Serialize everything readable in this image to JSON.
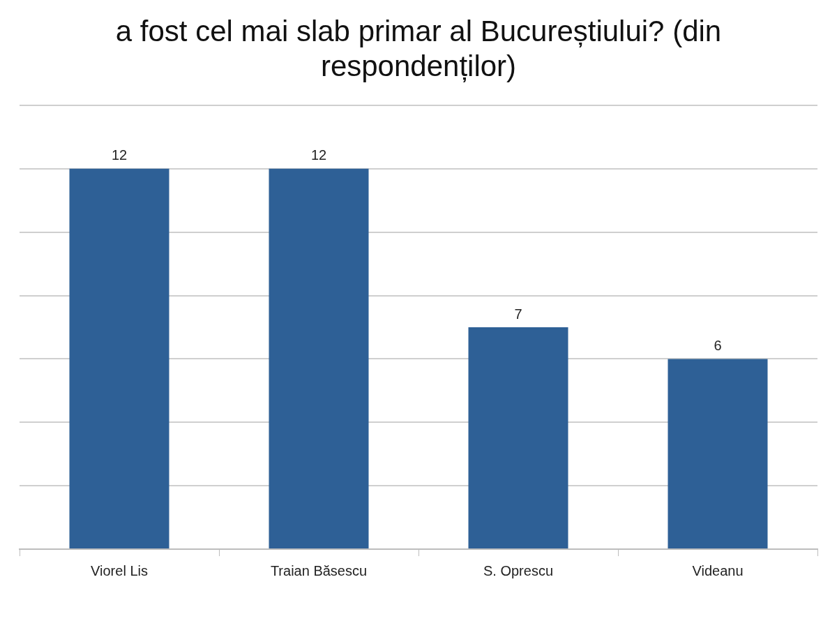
{
  "chart_data": {
    "type": "bar",
    "title": "a fost cel mai slab primar al Bucureștiului? (din respondenților)",
    "categories": [
      "Viorel Lis",
      "Traian Băsescu",
      "S. Oprescu",
      "Videanu"
    ],
    "values": [
      12,
      12,
      7,
      6
    ],
    "color": "#2e6096",
    "grid": "y",
    "tick_labels": "x",
    "data_labels": true
  }
}
